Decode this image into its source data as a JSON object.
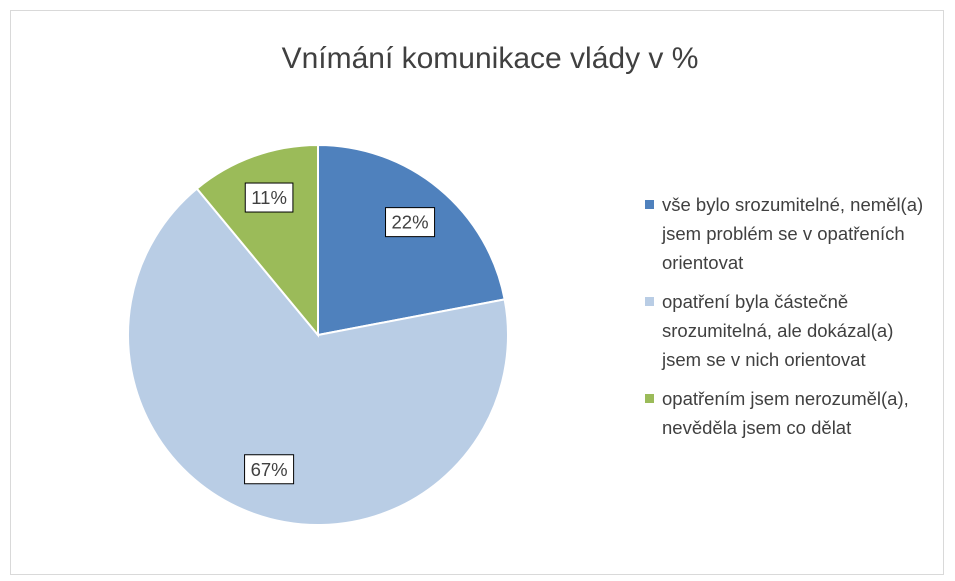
{
  "chart_data": {
    "type": "pie",
    "title": "Vnímání komunikace vlády v %",
    "categories": [
      "vše bylo srozumitelné, neměl(a) jsem problém se v opatřeních orientovat",
      "opatření byla částečně srozumitelná, ale dokázal(a) jsem se v nich orientovat",
      "opatřením jsem nerozuměl(a), nevěděla jsem co dělat"
    ],
    "values": [
      22,
      67,
      11
    ],
    "value_labels": [
      "22%",
      "67%",
      "11%"
    ],
    "colors": [
      "#4f81bd",
      "#b9cde5",
      "#9bbb59"
    ],
    "legend": "right"
  }
}
